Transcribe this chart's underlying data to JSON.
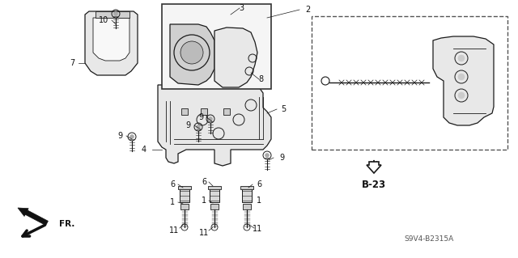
{
  "bg_color": "#ffffff",
  "fig_width": 6.4,
  "fig_height": 3.19,
  "dpi": 100,
  "part_code": "S9V4-B2315A",
  "ref_label": "B-23",
  "fr_label": "FR."
}
